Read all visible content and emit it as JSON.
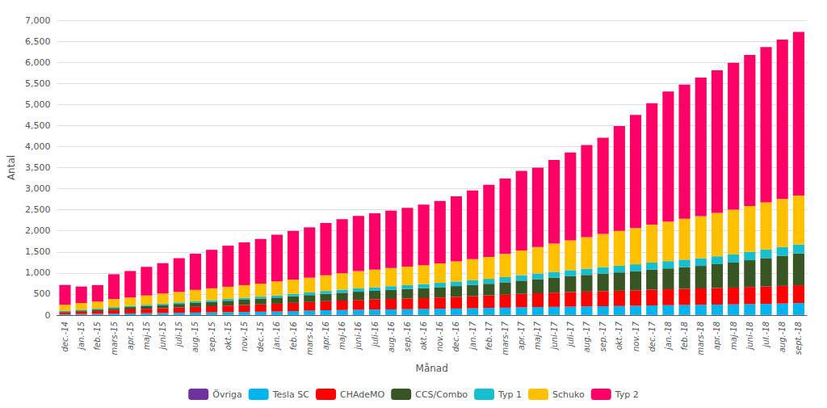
{
  "chart_data": {
    "type": "bar",
    "stacked": true,
    "grid": true,
    "legend": "bottom",
    "xlabel": "Månad",
    "ylabel": "Antal",
    "categories": [
      "dec.-14",
      "jan.-15",
      "feb.-15",
      "mars-15",
      "apr.-15",
      "maj-15",
      "juni-15",
      "juli-15",
      "aug.-15",
      "sep.-15",
      "okt.-15",
      "nov.-15",
      "dec.-15",
      "jan.-16",
      "feb.-16",
      "mars-16",
      "apr.-16",
      "maj-16",
      "juni-16",
      "juli-16",
      "aug.-16",
      "sep.-16",
      "okt.-16",
      "nov.-16",
      "dec.-16",
      "jan.-17",
      "feb.-17",
      "mars-17",
      "apr.-17",
      "maj-17",
      "juni-17",
      "juli-17",
      "aug.-17",
      "sep.-17",
      "okt.-17",
      "nov.-17",
      "dec.-17",
      "jan.-18",
      "feb.-18",
      "mars-18",
      "apr.-18",
      "maj-18",
      "juni-18",
      "jul.-18",
      "aug.-18",
      "sept.-18"
    ],
    "series": [
      {
        "name": "Övriga",
        "color": "#7030a0",
        "values": [
          5,
          5,
          5,
          5,
          5,
          5,
          5,
          5,
          5,
          5,
          5,
          5,
          5,
          5,
          5,
          5,
          5,
          5,
          5,
          5,
          5,
          5,
          5,
          5,
          5,
          5,
          5,
          5,
          5,
          5,
          5,
          5,
          5,
          5,
          5,
          5,
          5,
          5,
          5,
          5,
          5,
          5,
          5,
          5,
          5,
          5
        ]
      },
      {
        "name": "Tesla SC",
        "color": "#00b4ef",
        "values": [
          15,
          20,
          25,
          30,
          35,
          40,
          45,
          50,
          55,
          60,
          65,
          70,
          75,
          80,
          90,
          100,
          110,
          115,
          120,
          125,
          130,
          135,
          140,
          145,
          150,
          155,
          165,
          170,
          180,
          185,
          190,
          195,
          200,
          205,
          210,
          215,
          225,
          230,
          235,
          240,
          245,
          250,
          255,
          260,
          270,
          280
        ]
      },
      {
        "name": "CHAdeMO",
        "color": "#ff0000",
        "values": [
          45,
          55,
          65,
          85,
          95,
          105,
          115,
          125,
          135,
          145,
          155,
          165,
          175,
          185,
          195,
          205,
          215,
          225,
          235,
          242,
          248,
          253,
          258,
          268,
          278,
          288,
          298,
          308,
          318,
          328,
          338,
          348,
          353,
          358,
          363,
          368,
          373,
          378,
          383,
          388,
          393,
          398,
          408,
          413,
          418,
          423
        ]
      },
      {
        "name": "CCS/Combo",
        "color": "#375623",
        "values": [
          25,
          30,
          35,
          45,
          55,
          65,
          75,
          85,
          95,
          105,
          115,
          125,
          135,
          145,
          155,
          165,
          175,
          185,
          195,
          205,
          215,
          225,
          235,
          245,
          255,
          265,
          275,
          295,
          315,
          335,
          355,
          375,
          395,
          415,
          435,
          455,
          475,
          495,
          515,
          535,
          565,
          595,
          635,
          675,
          715,
          755
        ]
      },
      {
        "name": "Typ 1",
        "color": "#17becf",
        "values": [
          15,
          18,
          22,
          25,
          27,
          30,
          33,
          36,
          38,
          40,
          43,
          46,
          48,
          53,
          58,
          63,
          68,
          73,
          78,
          83,
          88,
          93,
          98,
          103,
          108,
          113,
          118,
          123,
          128,
          133,
          138,
          143,
          148,
          153,
          158,
          163,
          168,
          173,
          178,
          183,
          188,
          193,
          198,
          203,
          208,
          213
        ]
      },
      {
        "name": "Schuko",
        "color": "#ffc000",
        "values": [
          140,
          160,
          170,
          190,
          200,
          220,
          240,
          250,
          270,
          280,
          290,
          300,
          310,
          330,
          340,
          350,
          370,
          390,
          410,
          420,
          430,
          440,
          450,
          460,
          480,
          500,
          520,
          550,
          590,
          630,
          670,
          710,
          750,
          790,
          830,
          860,
          900,
          940,
          970,
          1000,
          1030,
          1060,
          1090,
          1120,
          1140,
          1160
        ]
      },
      {
        "name": "Typ 2",
        "color": "#ff0066",
        "values": [
          470,
          390,
          390,
          590,
          630,
          680,
          720,
          800,
          860,
          915,
          975,
          1015,
          1060,
          1110,
          1155,
          1195,
          1245,
          1285,
          1310,
          1335,
          1365,
          1395,
          1435,
          1485,
          1545,
          1630,
          1710,
          1790,
          1885,
          1885,
          1985,
          2085,
          2185,
          2285,
          2485,
          2685,
          2885,
          3085,
          3185,
          3285,
          3385,
          3485,
          3585,
          3685,
          3785,
          3885
        ]
      }
    ],
    "ylim": [
      0,
      7000
    ],
    "yticks": [
      0,
      500,
      1000,
      1500,
      2000,
      2500,
      3000,
      3500,
      4000,
      4500,
      5000,
      5500,
      6000,
      6500,
      7000
    ]
  }
}
